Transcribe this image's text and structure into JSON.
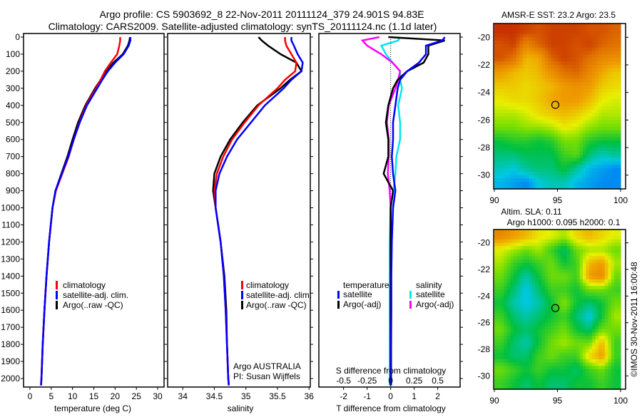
{
  "title": {
    "line1": "Argo profile: CS 5903692_8 22-Nov-2011 20111124_379 24.901S 94.83E",
    "line2": "Climatology: CARS2009. Satellite-adjusted climatology: synTS_20111124.nc (1.1d later)"
  },
  "colors": {
    "climatology": "#ff0000",
    "satellite": "#0000ff",
    "argo": "#000000",
    "sal_satellite": "#00e8f0",
    "sal_argo": "#ff00ff"
  },
  "depth_ticks": [
    0,
    100,
    200,
    300,
    400,
    500,
    600,
    700,
    800,
    900,
    1000,
    1100,
    1200,
    1300,
    1400,
    1500,
    1600,
    1700,
    1800,
    1900,
    2000
  ],
  "chart_data": [
    {
      "type": "line",
      "name": "temperature",
      "xlabel": "temperature (deg C)",
      "ylabel": "depth",
      "xlim": [
        -1.5,
        31.5
      ],
      "ylim": [
        2050,
        0
      ],
      "xticks": [
        0,
        5,
        10,
        15,
        20,
        25,
        30
      ],
      "depth": [
        0,
        20,
        50,
        100,
        150,
        200,
        250,
        300,
        400,
        500,
        600,
        700,
        800,
        900,
        1000,
        1200,
        1400,
        1600,
        1800,
        2000,
        2040
      ],
      "series": [
        {
          "name": "climatology",
          "values": [
            21.2,
            21.2,
            21.0,
            20.5,
            19.0,
            17.6,
            16.6,
            15.5,
            13.2,
            11.6,
            10.3,
            9.1,
            7.6,
            6.1,
            5.3,
            4.5,
            3.9,
            3.4,
            3.0,
            2.7,
            2.6
          ]
        },
        {
          "name": "satellite-adj. clim.",
          "values": [
            23.6,
            23.6,
            23.2,
            22.0,
            20.0,
            18.3,
            17.0,
            15.8,
            13.4,
            11.7,
            10.3,
            9.0,
            7.5,
            6.0,
            5.3,
            4.5,
            3.9,
            3.4,
            3.0,
            2.7,
            2.6
          ]
        },
        {
          "name": "Argo(..raw -QC)",
          "values": [
            23.5,
            23.4,
            23.0,
            21.8,
            19.6,
            17.9,
            16.6,
            15.3,
            13.0,
            11.3,
            10.0,
            8.8,
            7.4,
            6.0,
            5.3,
            4.5,
            3.9,
            3.4,
            3.0,
            2.7,
            2.6
          ]
        }
      ],
      "legend": [
        "climatology",
        "satellite-adj. clim.",
        "Argo(..raw -QC)"
      ]
    },
    {
      "type": "line",
      "name": "salinity",
      "xlabel": "salinity",
      "xlim": [
        33.76,
        36.02
      ],
      "ylim": [
        2050,
        0
      ],
      "xticks": [
        34,
        34.5,
        35,
        35.5,
        36
      ],
      "depth": [
        0,
        20,
        50,
        100,
        150,
        200,
        250,
        300,
        400,
        500,
        600,
        700,
        800,
        900,
        1000,
        1200,
        1400,
        1600,
        1800,
        2000,
        2040
      ],
      "series": [
        {
          "name": "climatology",
          "values": [
            35.62,
            35.62,
            35.64,
            35.72,
            35.8,
            35.78,
            35.62,
            35.5,
            35.2,
            34.98,
            34.78,
            34.64,
            34.54,
            34.5,
            34.52,
            34.6,
            34.65,
            34.68,
            34.7,
            34.72,
            34.73
          ]
        },
        {
          "name": "satellite-adj. clim.",
          "values": [
            35.72,
            35.72,
            35.76,
            35.82,
            35.9,
            35.88,
            35.72,
            35.6,
            35.3,
            35.08,
            34.86,
            34.7,
            34.58,
            34.52,
            34.52,
            34.6,
            34.65,
            34.68,
            34.7,
            34.72,
            34.73
          ]
        },
        {
          "name": "Argo(..raw -QC)",
          "values": [
            35.2,
            35.25,
            35.35,
            35.55,
            35.8,
            35.88,
            35.7,
            35.55,
            35.18,
            34.95,
            34.75,
            34.6,
            34.5,
            34.48,
            34.52,
            34.6,
            34.66,
            34.69,
            34.7,
            34.72,
            34.73
          ]
        }
      ],
      "legend": [
        "climatology",
        "satellite-adj. clim.",
        "Argo(..raw -QC)"
      ],
      "annotation": {
        "line1": "Argo AUSTRALIA",
        "line2": "PI: Susan Wijffels"
      }
    },
    {
      "type": "line",
      "name": "differences",
      "xlabel": "T difference from climatology",
      "x2label": "S difference from climatology",
      "xlim": [
        -3.05,
        2.95
      ],
      "ylim": [
        2050,
        0
      ],
      "xticks": [
        -2,
        -1,
        0,
        1,
        2
      ],
      "x2ticks": [
        -0.5,
        -0.25,
        0,
        0.25,
        0.5
      ],
      "depth": [
        0,
        20,
        50,
        100,
        150,
        200,
        250,
        300,
        400,
        500,
        600,
        700,
        800,
        900,
        1000,
        1200,
        1400,
        1600,
        1800,
        2000,
        2040
      ],
      "series": [
        {
          "name": "temperature satellite",
          "units": "degC",
          "values": [
            2.3,
            2.2,
            1.5,
            1.5,
            1.2,
            0.7,
            0.4,
            0.3,
            0.2,
            0.1,
            0.1,
            0.05,
            0.1,
            0.2,
            0.1,
            0.05,
            0.03,
            0.03,
            0.02,
            0.02,
            0.02
          ]
        },
        {
          "name": "temperature Argo(-adj)",
          "units": "degC",
          "values": [
            -0.1,
            2.3,
            1.6,
            1.6,
            1.4,
            0.7,
            0.3,
            0.1,
            -0.1,
            -0.2,
            -0.1,
            -0.1,
            -0.3,
            0.1,
            0.0,
            0.0,
            0.0,
            0.0,
            0.0,
            0.0,
            0.0
          ]
        },
        {
          "name": "salinity satellite",
          "units": "psu",
          "values": [
            0.1,
            0.08,
            -0.1,
            -0.05,
            0.02,
            0.1,
            0.1,
            0.12,
            0.08,
            0.1,
            0.1,
            0.06,
            0.05,
            0.03,
            0.0,
            -0.01,
            -0.01,
            -0.01,
            -0.01,
            -0.01,
            -0.01
          ]
        },
        {
          "name": "salinity Argo(-adj)",
          "units": "psu",
          "values": [
            -0.12,
            -0.3,
            -0.25,
            -0.1,
            0.02,
            0.1,
            0.08,
            0.05,
            -0.02,
            -0.04,
            -0.02,
            -0.02,
            -0.03,
            -0.01,
            0.0,
            0.0,
            0.0,
            0.0,
            0.0,
            0.0,
            0.0
          ]
        }
      ],
      "legend": {
        "temperature_title": "temperature",
        "salinity_title": "salinity",
        "t_sat": "satellite",
        "t_argo": "Argo(-adj)",
        "s_sat": "satellite",
        "s_argo": "Argo(-adj)"
      }
    },
    {
      "type": "heatmap",
      "name": "sst-map",
      "title": "AMSR-E SST: 23.2 Argo: 23.5",
      "lon_range": [
        90,
        100
      ],
      "lat_range": [
        -19,
        -31
      ],
      "xticks": [
        90,
        95,
        100
      ],
      "yticks": [
        -20,
        -22,
        -24,
        -26,
        -28,
        -30
      ],
      "color_range": [
        21.5,
        24.7
      ],
      "marker": {
        "lon": 94.83,
        "lat": -24.901
      },
      "grid": [
        [
          24.6,
          24.6,
          24.5,
          24.4,
          24.5,
          24.5,
          24.5,
          24.4,
          24.4,
          24.3
        ],
        [
          24.4,
          24.5,
          24.0,
          24.3,
          24.5,
          24.5,
          24.4,
          24.5,
          24.3,
          24.2
        ],
        [
          24.4,
          24.2,
          23.6,
          23.7,
          24.3,
          24.5,
          24.4,
          24.2,
          24.0,
          23.9
        ],
        [
          23.8,
          23.6,
          23.5,
          23.6,
          23.9,
          24.2,
          24.3,
          24.0,
          23.7,
          23.5
        ],
        [
          23.5,
          23.5,
          23.4,
          23.5,
          23.6,
          23.8,
          23.9,
          23.8,
          23.5,
          23.4
        ],
        [
          23.3,
          23.4,
          23.4,
          23.5,
          23.7,
          23.8,
          23.8,
          23.6,
          23.3,
          23.2
        ],
        [
          23.1,
          23.1,
          23.2,
          23.4,
          23.5,
          23.6,
          23.5,
          23.3,
          23.1,
          23.1
        ],
        [
          22.9,
          22.9,
          23.0,
          23.0,
          23.1,
          23.3,
          23.2,
          23.0,
          22.9,
          22.9
        ],
        [
          22.5,
          22.6,
          22.6,
          22.5,
          22.6,
          22.9,
          22.9,
          22.6,
          22.5,
          22.5
        ],
        [
          22.3,
          22.3,
          22.4,
          22.4,
          22.4,
          22.7,
          22.8,
          22.3,
          22.1,
          22.2
        ],
        [
          22.1,
          22.0,
          22.2,
          22.3,
          22.3,
          22.5,
          22.2,
          21.9,
          21.8,
          21.7
        ],
        [
          21.9,
          21.8,
          21.7,
          22.0,
          22.1,
          22.1,
          21.9,
          21.8,
          21.7,
          21.7
        ]
      ]
    },
    {
      "type": "heatmap",
      "name": "sla-map",
      "title1": "Altim. SLA: 0.11",
      "title2": "Argo h1000: 0.095 h2000: 0.1",
      "lon_range": [
        90,
        100
      ],
      "lat_range": [
        -19,
        -31
      ],
      "xticks": [
        90,
        95,
        100
      ],
      "yticks": [
        -20,
        -22,
        -24,
        -26,
        -28,
        -30
      ],
      "color_range": [
        -0.05,
        0.3
      ],
      "marker": {
        "lon": 94.83,
        "lat": -24.901
      },
      "grid": [
        [
          0.22,
          0.2,
          0.18,
          0.15,
          0.14,
          0.12,
          0.16,
          0.18,
          0.16,
          0.14
        ],
        [
          0.14,
          0.12,
          0.1,
          0.12,
          0.08,
          0.04,
          0.1,
          0.12,
          0.12,
          0.1
        ],
        [
          0.12,
          0.08,
          0.06,
          0.08,
          0.1,
          0.06,
          0.08,
          0.18,
          0.2,
          0.12
        ],
        [
          0.1,
          0.06,
          0.02,
          0.06,
          0.1,
          0.1,
          0.08,
          0.2,
          0.22,
          0.1
        ],
        [
          0.08,
          0.04,
          0.0,
          0.04,
          0.08,
          0.08,
          0.06,
          0.1,
          0.1,
          0.08
        ],
        [
          0.06,
          0.02,
          0.0,
          0.02,
          0.06,
          0.11,
          0.06,
          0.04,
          0.06,
          0.1
        ],
        [
          0.08,
          0.04,
          0.02,
          0.04,
          0.06,
          0.08,
          0.04,
          0.0,
          0.06,
          0.12
        ],
        [
          0.1,
          0.06,
          0.04,
          0.06,
          0.08,
          0.1,
          0.06,
          0.04,
          0.1,
          0.1
        ],
        [
          0.08,
          0.04,
          0.02,
          0.06,
          0.1,
          0.12,
          0.1,
          0.1,
          0.18,
          0.08
        ],
        [
          0.06,
          0.04,
          0.04,
          0.08,
          0.1,
          0.08,
          0.08,
          0.16,
          0.2,
          0.08
        ],
        [
          0.1,
          0.08,
          0.06,
          0.08,
          0.06,
          0.06,
          0.04,
          0.08,
          0.1,
          0.06
        ],
        [
          0.08,
          0.06,
          0.04,
          0.06,
          0.04,
          0.04,
          0.06,
          0.06,
          0.08,
          0.06
        ]
      ]
    }
  ],
  "footer": {
    "credit": "©IMOS 30-Nov-2011 16:00:48"
  }
}
